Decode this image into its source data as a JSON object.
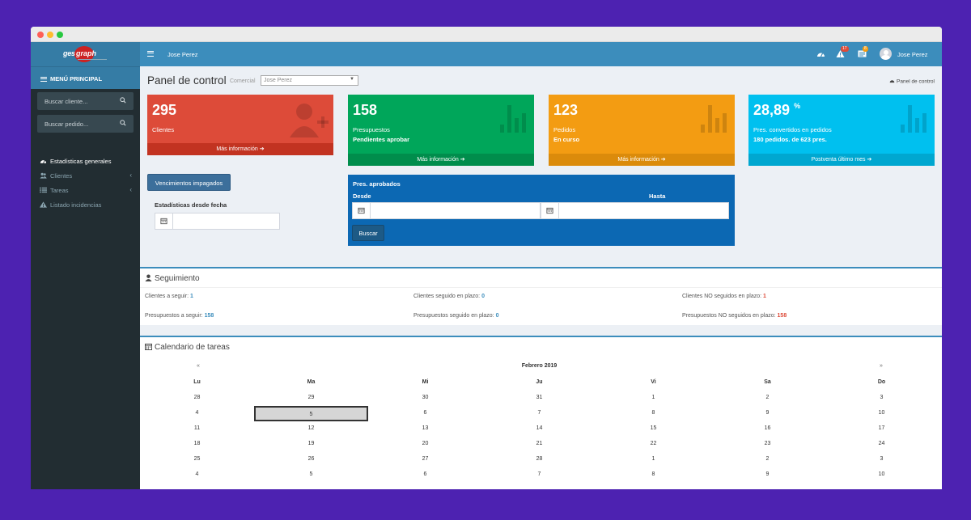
{
  "sidebar": {
    "menu_header": "MENÚ PRINCIPAL",
    "search_client_placeholder": "Buscar cliente...",
    "search_order_placeholder": "Buscar pedido...",
    "items": [
      {
        "label": "Estadísticas generales",
        "icon": "dashboard-icon",
        "active": true
      },
      {
        "label": "Clientes",
        "icon": "users-icon",
        "active": false
      },
      {
        "label": "Tareas",
        "icon": "tasks-icon",
        "active": false
      },
      {
        "label": "Listado incidencias",
        "icon": "warning-icon",
        "active": false
      }
    ]
  },
  "topbar": {
    "user_left": "Jose Perez",
    "user_right": "Jose Perez",
    "alerts_badge": "17",
    "tasks_badge": "8"
  },
  "header": {
    "title": "Panel de control",
    "comercial_label": "Comercial",
    "comercial_value": "Jose Perez",
    "breadcrumb": "Panel de control"
  },
  "boxes": [
    {
      "number": "295",
      "line1": "Clientes",
      "line2": "",
      "footer": "Más información",
      "color": "#dd4b39"
    },
    {
      "number": "158",
      "line1": "Presupuestos",
      "line2": "Pendientes aprobar",
      "footer": "Más información",
      "color": "#00a65a"
    },
    {
      "number": "123",
      "line1": "Pedidos",
      "line2": "En curso",
      "footer": "Más información",
      "color": "#f39c12"
    },
    {
      "number": "28,89",
      "unit": "%",
      "line1": "Pres. convertidos en pedidos",
      "line2": "180 pedidos. de 623 pres.",
      "footer": "Postventa último mes",
      "color": "#00c0ef"
    }
  ],
  "vencimientos_button": "Vencimientos impagados",
  "stats_since_label": "Estadísticas desde fecha",
  "aprobados": {
    "title": "Pres. aprobados",
    "desde": "Desde",
    "hasta": "Hasta",
    "search_button": "Buscar"
  },
  "seguimiento": {
    "title": "Seguimiento",
    "stats": [
      {
        "label": "Clientes a seguir:",
        "value": "1"
      },
      {
        "label": "Clientes seguido en plazo:",
        "value": "0"
      },
      {
        "label": "Clientes NO seguidos en plazo:",
        "value": "1"
      },
      {
        "label": "Presupuestos a seguir:",
        "value": "158"
      },
      {
        "label": "Presupuestos seguido en plazo:",
        "value": "0"
      },
      {
        "label": "Presupuestos NO seguidos en plazo:",
        "value": "158"
      }
    ]
  },
  "calendario": {
    "title": "Calendario de tareas",
    "prev": "«",
    "next": "»",
    "month": "Febrero 2019",
    "days": [
      "Lu",
      "Ma",
      "Mi",
      "Ju",
      "Vi",
      "Sa",
      "Do"
    ],
    "weeks": [
      [
        "28",
        "29",
        "30",
        "31",
        "1",
        "2",
        "3"
      ],
      [
        "4",
        "5",
        "6",
        "7",
        "8",
        "9",
        "10"
      ],
      [
        "11",
        "12",
        "13",
        "14",
        "15",
        "16",
        "17"
      ],
      [
        "18",
        "19",
        "20",
        "21",
        "22",
        "23",
        "24"
      ],
      [
        "25",
        "26",
        "27",
        "28",
        "1",
        "2",
        "3"
      ],
      [
        "4",
        "5",
        "6",
        "7",
        "8",
        "9",
        "10"
      ]
    ],
    "today_week": 1,
    "today_day": 1
  }
}
